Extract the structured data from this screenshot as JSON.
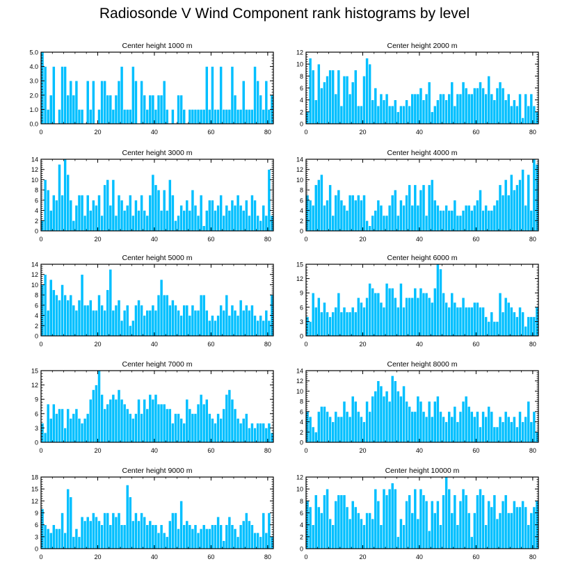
{
  "title": "Radiosonde V Wind Component rank histograms by level",
  "colors": {
    "bar": "#00bfff",
    "bar_edge": "#ffffff",
    "axis": "#000000"
  },
  "chart_data": [
    {
      "type": "bar",
      "title": "Center height 1000 m",
      "ylim": [
        0,
        5
      ],
      "yticks": [
        0,
        1,
        2,
        3,
        4,
        5
      ],
      "ytick_labels": [
        "0.0",
        "1.0",
        "2.0",
        "3.0",
        "4.0",
        "5.0"
      ],
      "xlim": [
        0,
        82
      ],
      "xticks": [
        0,
        20,
        40,
        60,
        80
      ],
      "values": [
        5,
        4,
        1,
        2,
        4,
        0,
        1,
        4,
        4,
        2,
        3,
        2,
        3,
        1,
        1,
        0,
        3,
        1,
        3,
        0,
        1,
        3,
        3,
        2,
        2,
        1,
        2,
        3,
        4,
        1,
        1,
        1,
        4,
        3,
        0,
        3,
        2,
        1,
        2,
        2,
        1,
        2,
        2,
        3,
        1,
        0,
        1,
        0,
        2,
        2,
        1,
        0,
        1,
        1,
        1,
        1,
        1,
        1,
        4,
        1,
        4,
        1,
        1,
        4,
        1,
        1,
        1,
        4,
        2,
        1,
        1,
        3,
        1,
        1,
        1,
        4,
        3,
        2,
        1,
        3,
        1,
        2
      ]
    },
    {
      "type": "bar",
      "title": "Center height 2000 m",
      "ylim": [
        0,
        12
      ],
      "yticks": [
        0,
        2,
        4,
        6,
        8,
        10,
        12
      ],
      "ytick_labels": [
        "0",
        "2",
        "4",
        "6",
        "8",
        "10",
        "12"
      ],
      "xlim": [
        0,
        82
      ],
      "xticks": [
        0,
        20,
        40,
        60,
        80
      ],
      "values": [
        2,
        11,
        9,
        4,
        10,
        6,
        7,
        8,
        9,
        9,
        5,
        9,
        3,
        8,
        8,
        5,
        7,
        9,
        3,
        3,
        8,
        11,
        10,
        4,
        6,
        3,
        5,
        4,
        5,
        3,
        3,
        4,
        2,
        3,
        3,
        4,
        3,
        5,
        5,
        5,
        6,
        4,
        5,
        7,
        2,
        3,
        4,
        5,
        5,
        4,
        5,
        7,
        3,
        5,
        5,
        7,
        6,
        5,
        5,
        6,
        6,
        7,
        6,
        5,
        8,
        5,
        4,
        6,
        7,
        6,
        4,
        5,
        3,
        4,
        3,
        5,
        1,
        5,
        3,
        5,
        3,
        2
      ]
    },
    {
      "type": "bar",
      "title": "Center height 3000 m",
      "ylim": [
        0,
        14
      ],
      "yticks": [
        0,
        2,
        4,
        6,
        8,
        10,
        12,
        14
      ],
      "ytick_labels": [
        "0",
        "2",
        "4",
        "6",
        "8",
        "10",
        "12",
        "14"
      ],
      "xlim": [
        0,
        82
      ],
      "xticks": [
        0,
        20,
        40,
        60,
        80
      ],
      "values": [
        2,
        10,
        8,
        4,
        7,
        6,
        13,
        7,
        14,
        11,
        6,
        2,
        5,
        7,
        7,
        3,
        7,
        4,
        6,
        5,
        7,
        3,
        9,
        10,
        5,
        10,
        3,
        7,
        6,
        4,
        5,
        7,
        3,
        6,
        4,
        7,
        4,
        3,
        7,
        11,
        9,
        8,
        4,
        8,
        4,
        10,
        7,
        2,
        3,
        5,
        4,
        6,
        4,
        8,
        5,
        3,
        7,
        1,
        4,
        6,
        6,
        4,
        5,
        7,
        3,
        5,
        4,
        6,
        5,
        7,
        5,
        4,
        6,
        3,
        7,
        6,
        3,
        2,
        5,
        3,
        12,
        3
      ]
    },
    {
      "type": "bar",
      "title": "Center height 4000 m",
      "ylim": [
        0,
        14
      ],
      "yticks": [
        0,
        2,
        4,
        6,
        8,
        10,
        12,
        14
      ],
      "ytick_labels": [
        "0",
        "2",
        "4",
        "6",
        "8",
        "10",
        "12",
        "14"
      ],
      "xlim": [
        0,
        82
      ],
      "xticks": [
        0,
        20,
        40,
        60,
        80
      ],
      "values": [
        7,
        6,
        5,
        9,
        10,
        11,
        5,
        6,
        9,
        3,
        7,
        8,
        6,
        5,
        4,
        7,
        7,
        6,
        7,
        6,
        7,
        2,
        1,
        3,
        4,
        6,
        5,
        3,
        3,
        5,
        7,
        8,
        3,
        6,
        5,
        7,
        9,
        5,
        9,
        5,
        8,
        9,
        3,
        9,
        10,
        6,
        5,
        4,
        4,
        5,
        4,
        4,
        6,
        3,
        3,
        4,
        5,
        5,
        4,
        5,
        6,
        8,
        4,
        5,
        4,
        4,
        5,
        6,
        9,
        7,
        10,
        7,
        11,
        8,
        9,
        10,
        12,
        5,
        11,
        4,
        14,
        13
      ]
    },
    {
      "type": "bar",
      "title": "Center height 5000 m",
      "ylim": [
        0,
        14
      ],
      "yticks": [
        0,
        2,
        4,
        6,
        8,
        10,
        12,
        14
      ],
      "ytick_labels": [
        "0",
        "2",
        "4",
        "6",
        "8",
        "10",
        "12",
        "14"
      ],
      "xlim": [
        0,
        82
      ],
      "xticks": [
        0,
        20,
        40,
        60,
        80
      ],
      "values": [
        10,
        12,
        5,
        11,
        9,
        8,
        7,
        10,
        8,
        7,
        8,
        6,
        5,
        7,
        12,
        6,
        6,
        7,
        5,
        5,
        8,
        6,
        5,
        9,
        13,
        5,
        6,
        7,
        3,
        5,
        6,
        2,
        3,
        6,
        7,
        6,
        4,
        5,
        5,
        6,
        5,
        8,
        11,
        8,
        8,
        6,
        7,
        6,
        5,
        4,
        6,
        6,
        4,
        6,
        5,
        5,
        8,
        8,
        5,
        3,
        4,
        3,
        4,
        6,
        5,
        8,
        4,
        6,
        5,
        4,
        7,
        5,
        6,
        5,
        6,
        4,
        3,
        4,
        3,
        5,
        3,
        8
      ]
    },
    {
      "type": "bar",
      "title": "Center height 6000 m",
      "ylim": [
        0,
        15
      ],
      "yticks": [
        0,
        3,
        6,
        9,
        12,
        15
      ],
      "ytick_labels": [
        "0",
        "3",
        "6",
        "9",
        "12",
        "15"
      ],
      "xlim": [
        0,
        82
      ],
      "xticks": [
        0,
        20,
        40,
        60,
        80
      ],
      "values": [
        4,
        3,
        9,
        6,
        8,
        5,
        7,
        5,
        4,
        5,
        6,
        9,
        5,
        6,
        5,
        5,
        6,
        5,
        8,
        7,
        6,
        8,
        11,
        10,
        9,
        9,
        7,
        6,
        11,
        10,
        10,
        8,
        6,
        11,
        6,
        8,
        8,
        8,
        10,
        8,
        10,
        9,
        9,
        8,
        7,
        10,
        15,
        14,
        9,
        7,
        6,
        9,
        7,
        6,
        6,
        8,
        6,
        6,
        6,
        7,
        7,
        6,
        6,
        4,
        3,
        5,
        3,
        3,
        9,
        5,
        8,
        7,
        6,
        5,
        4,
        6,
        5,
        2,
        4,
        4,
        4,
        6
      ]
    },
    {
      "type": "bar",
      "title": "Center height 7000 m",
      "ylim": [
        0,
        15
      ],
      "yticks": [
        0,
        3,
        6,
        9,
        12,
        15
      ],
      "ytick_labels": [
        "0",
        "3",
        "6",
        "9",
        "12",
        "15"
      ],
      "xlim": [
        0,
        82
      ],
      "xticks": [
        0,
        20,
        40,
        60,
        80
      ],
      "values": [
        4,
        2,
        8,
        5,
        8,
        6,
        7,
        7,
        3,
        7,
        5,
        6,
        7,
        5,
        4,
        5,
        6,
        9,
        11,
        12,
        15,
        10,
        7,
        8,
        9,
        10,
        9,
        11,
        9,
        8,
        7,
        6,
        5,
        6,
        9,
        6,
        9,
        7,
        10,
        9,
        10,
        8,
        8,
        8,
        7,
        7,
        4,
        6,
        6,
        5,
        4,
        9,
        7,
        6,
        6,
        8,
        10,
        8,
        9,
        6,
        5,
        4,
        6,
        5,
        7,
        10,
        11,
        9,
        7,
        5,
        4,
        5,
        6,
        3,
        4,
        3,
        4,
        4,
        4,
        3,
        4,
        2
      ]
    },
    {
      "type": "bar",
      "title": "Center height 8000 m",
      "ylim": [
        0,
        14
      ],
      "yticks": [
        0,
        2,
        4,
        6,
        8,
        10,
        12,
        14
      ],
      "ytick_labels": [
        "0",
        "2",
        "4",
        "6",
        "8",
        "10",
        "12",
        "14"
      ],
      "xlim": [
        0,
        82
      ],
      "xticks": [
        0,
        20,
        40,
        60,
        80
      ],
      "values": [
        6,
        5,
        3,
        2,
        6,
        7,
        7,
        6,
        5,
        4,
        6,
        5,
        5,
        8,
        6,
        5,
        9,
        8,
        6,
        5,
        4,
        8,
        6,
        9,
        10,
        12,
        11,
        9,
        10,
        8,
        13,
        12,
        10,
        9,
        11,
        8,
        7,
        6,
        6,
        9,
        8,
        6,
        5,
        8,
        5,
        8,
        9,
        6,
        5,
        4,
        6,
        5,
        7,
        4,
        6,
        8,
        9,
        7,
        6,
        5,
        6,
        3,
        6,
        5,
        7,
        6,
        3,
        3,
        5,
        4,
        6,
        5,
        4,
        5,
        3,
        6,
        4,
        5,
        8,
        4,
        6,
        2
      ]
    },
    {
      "type": "bar",
      "title": "Center height 9000 m",
      "ylim": [
        0,
        18
      ],
      "yticks": [
        0,
        3,
        6,
        9,
        12,
        15,
        18
      ],
      "ytick_labels": [
        "0",
        "3",
        "6",
        "9",
        "12",
        "15",
        "18"
      ],
      "xlim": [
        0,
        82
      ],
      "xticks": [
        0,
        20,
        40,
        60,
        80
      ],
      "values": [
        10,
        6,
        5,
        4,
        6,
        5,
        5,
        9,
        4,
        15,
        13,
        3,
        5,
        3,
        8,
        7,
        8,
        7,
        9,
        8,
        7,
        6,
        9,
        9,
        6,
        9,
        8,
        9,
        6,
        6,
        16,
        13,
        7,
        9,
        7,
        9,
        8,
        6,
        7,
        6,
        6,
        4,
        6,
        4,
        3,
        7,
        9,
        9,
        5,
        12,
        6,
        7,
        6,
        5,
        6,
        4,
        5,
        6,
        5,
        5,
        6,
        6,
        8,
        6,
        2,
        6,
        8,
        6,
        5,
        3,
        6,
        7,
        9,
        7,
        6,
        4,
        4,
        3,
        9,
        4,
        9,
        3
      ]
    },
    {
      "type": "bar",
      "title": "Center height 10000 m",
      "ylim": [
        0,
        12
      ],
      "yticks": [
        0,
        2,
        4,
        6,
        8,
        10,
        12
      ],
      "ytick_labels": [
        "0",
        "2",
        "4",
        "6",
        "8",
        "10",
        "12"
      ],
      "xlim": [
        0,
        82
      ],
      "xticks": [
        0,
        20,
        40,
        60,
        80
      ],
      "values": [
        8,
        7,
        4,
        9,
        7,
        6,
        9,
        10,
        5,
        4,
        8,
        9,
        9,
        9,
        7,
        5,
        8,
        7,
        6,
        5,
        4,
        6,
        6,
        5,
        10,
        8,
        4,
        10,
        9,
        10,
        11,
        10,
        2,
        5,
        4,
        8,
        9,
        6,
        10,
        5,
        10,
        9,
        8,
        3,
        8,
        6,
        8,
        4,
        9,
        12,
        10,
        6,
        9,
        4,
        8,
        10,
        9,
        6,
        2,
        6,
        9,
        10,
        9,
        4,
        8,
        7,
        9,
        5,
        6,
        8,
        9,
        6,
        6,
        8,
        7,
        7,
        8,
        7,
        4,
        6,
        7,
        8
      ]
    }
  ]
}
